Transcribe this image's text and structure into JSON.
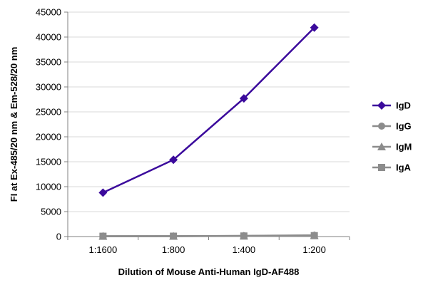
{
  "chart_data": {
    "type": "line",
    "title": "",
    "xlabel": "Dilution of Mouse Anti-Human IgD-AF488",
    "ylabel": "FI at Ex-485/20 nm & Em-528/20 nm",
    "categories": [
      "1:1600",
      "1:800",
      "1:400",
      "1:200"
    ],
    "ylim": [
      0,
      45000
    ],
    "yticks": [
      0,
      5000,
      10000,
      15000,
      20000,
      25000,
      30000,
      35000,
      40000,
      45000
    ],
    "grid": true,
    "legend_position": "right",
    "series": [
      {
        "name": "IgD",
        "values": [
          8800,
          15400,
          27700,
          41900
        ],
        "color": "#3b0a9c",
        "marker": "diamond"
      },
      {
        "name": "IgG",
        "values": [
          80,
          90,
          150,
          250
        ],
        "color": "#8c8c8c",
        "marker": "circle"
      },
      {
        "name": "IgM",
        "values": [
          70,
          80,
          130,
          220
        ],
        "color": "#8c8c8c",
        "marker": "triangle"
      },
      {
        "name": "IgA",
        "values": [
          60,
          70,
          110,
          180
        ],
        "color": "#8c8c8c",
        "marker": "square"
      }
    ]
  }
}
